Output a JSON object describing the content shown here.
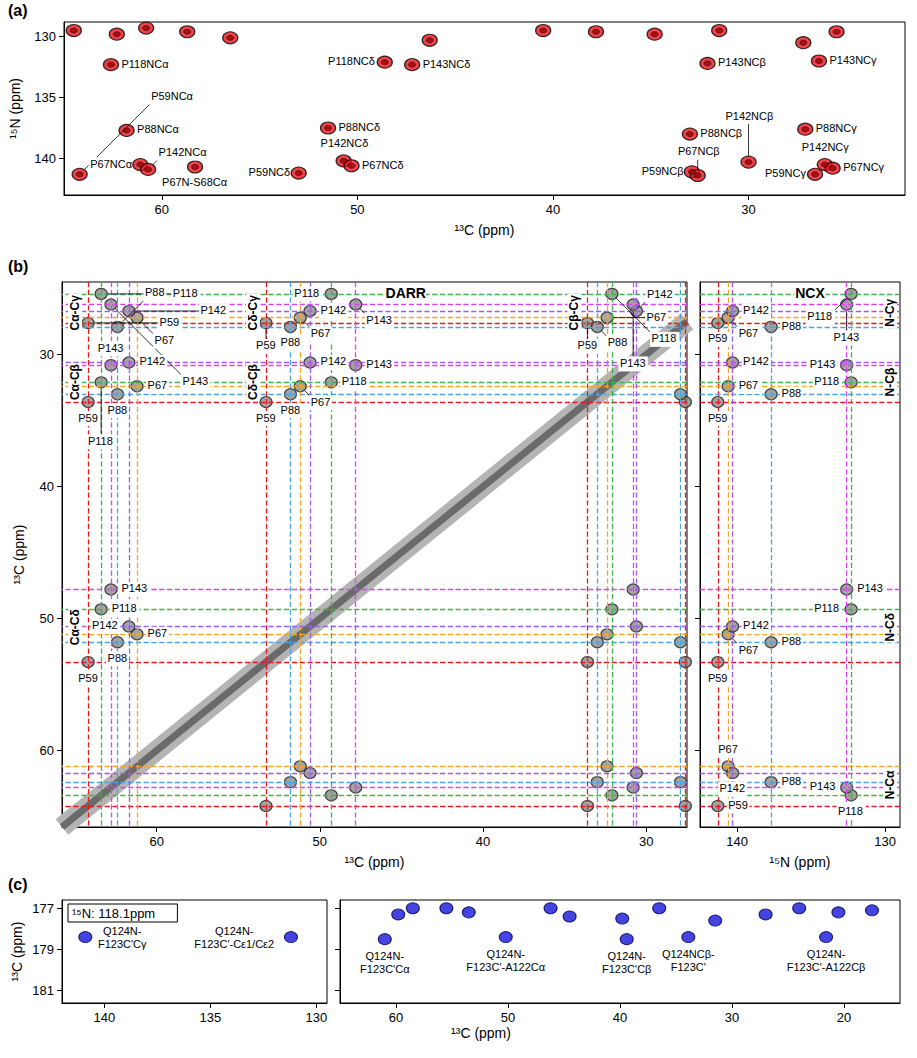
{
  "chart_data": [
    {
      "type": "scatter",
      "panel_label": "(a)",
      "x_label": "¹³C (ppm)",
      "y_label": "¹⁵N (ppm)",
      "xlim": [
        65,
        22
      ],
      "ylim": [
        143,
        128.8
      ],
      "xticks": [
        60,
        50,
        40,
        30
      ],
      "yticks": [
        130,
        135,
        140
      ],
      "color": "#e8141c",
      "peaks": [
        {
          "label": "P59NCα",
          "x": 64.2,
          "y": 141.3
        },
        {
          "label": "P118NCα",
          "x": 62.6,
          "y": 132.3
        },
        {
          "label": "P88NCα",
          "x": 61.8,
          "y": 137.7
        },
        {
          "label": "P67NCα",
          "x": 61.1,
          "y": 140.5
        },
        {
          "label": "P142NCα",
          "x": 60.7,
          "y": 140.9
        },
        {
          "label": "P67N-S68Cα",
          "x": 58.3,
          "y": 140.7
        },
        {
          "label": "P59NCδ",
          "x": 53.0,
          "y": 141.2
        },
        {
          "label": "P88NCδ",
          "x": 51.5,
          "y": 137.5
        },
        {
          "label": "P142NCδ",
          "x": 50.7,
          "y": 140.2
        },
        {
          "label": "P67NCδ",
          "x": 50.3,
          "y": 140.6
        },
        {
          "label": "P118NCδ",
          "x": 48.6,
          "y": 132.1
        },
        {
          "label": "P143NCδ",
          "x": 47.2,
          "y": 132.3
        },
        {
          "label": "P143NCβ",
          "x": 32.1,
          "y": 132.2
        },
        {
          "label": "P143NCγ",
          "x": 26.4,
          "y": 132.0
        },
        {
          "label": "P88NCβ",
          "x": 33.0,
          "y": 138.0
        },
        {
          "label": "P142NCβ",
          "x": 30.0,
          "y": 140.3
        },
        {
          "label": "P59NCβ",
          "x": 32.9,
          "y": 141.1
        },
        {
          "label": "P67NCβ",
          "x": 32.6,
          "y": 141.4
        },
        {
          "label": "P88NCγ",
          "x": 27.1,
          "y": 137.6
        },
        {
          "label": "P142NCγ",
          "x": 26.1,
          "y": 140.5
        },
        {
          "label": "P67NCγ",
          "x": 25.7,
          "y": 140.8
        },
        {
          "label": "P59NCγ",
          "x": 26.6,
          "y": 141.3
        }
      ],
      "other_peaks": [
        [
          64.5,
          129.5
        ],
        [
          62.3,
          129.8
        ],
        [
          60.8,
          129.3
        ],
        [
          58.7,
          129.6
        ],
        [
          56.5,
          130.1
        ],
        [
          46.3,
          130.3
        ],
        [
          40.5,
          129.5
        ],
        [
          37.8,
          129.6
        ],
        [
          34.8,
          129.8
        ],
        [
          31.5,
          129.5
        ],
        [
          27.2,
          130.5
        ],
        [
          25.5,
          129.6
        ]
      ]
    },
    {
      "type": "scatter",
      "panel_label": "(b)",
      "y_label": "¹³C (ppm)",
      "ylim": [
        65.8,
        24.5
      ],
      "yticks": [
        30,
        40,
        50,
        60
      ],
      "color": "#8c8c8c",
      "residues": [
        {
          "name": "P59",
          "color": "#e41a1c",
          "shifts": {
            "Cα": 64.2,
            "Cβ": 33.6,
            "Cγ": 27.6,
            "Cδ": 53.3,
            "N": 141.3
          }
        },
        {
          "name": "P88",
          "color": "#4aa3df",
          "shifts": {
            "Cα": 62.4,
            "Cβ": 33.0,
            "Cγ": 27.9,
            "Cδ": 51.8,
            "N": 137.7
          }
        },
        {
          "name": "P67",
          "color": "#f5a623",
          "shifts": {
            "Cα": 61.2,
            "Cβ": 32.4,
            "Cγ": 27.2,
            "Cδ": 51.2,
            "N": 140.6
          }
        },
        {
          "name": "P142",
          "color": "#9b5de5",
          "shifts": {
            "Cα": 61.7,
            "Cβ": 30.6,
            "Cγ": 26.7,
            "Cδ": 50.6,
            "N": 140.3
          }
        },
        {
          "name": "P118",
          "color": "#3cb44b",
          "shifts": {
            "Cα": 63.4,
            "Cβ": 32.1,
            "Cγ": 25.4,
            "Cδ": 49.3,
            "N": 132.3
          }
        },
        {
          "name": "P143",
          "color": "#e040fb",
          "shifts": {
            "Cα": 62.8,
            "Cβ": 30.8,
            "Cγ": 26.2,
            "Cδ": 47.8,
            "N": 132.6
          }
        }
      ],
      "panels": [
        {
          "title": "DARR",
          "x_label": "¹³C (ppm)",
          "xlim": [
            65.8,
            27.5
          ],
          "xticks": [
            60,
            50,
            40,
            30
          ],
          "group_labels": [
            "Cα-Cγ",
            "Cα-Cβ",
            "Cα-Cδ",
            "Cδ-Cγ",
            "Cδ-Cβ",
            "Cβ-Cγ"
          ]
        },
        {
          "title": "NCX",
          "x_label": "¹⁵N (ppm)",
          "xlim": [
            142.5,
            129
          ],
          "xticks": [
            140,
            130
          ],
          "group_labels": [
            "N-Cγ",
            "N-Cβ",
            "N-Cδ",
            "N-Cα"
          ],
          "tick_labels": "x"
        }
      ]
    },
    {
      "type": "scatter",
      "panel_label": "(c)",
      "x_label": "¹³C (ppm)",
      "y_label": "¹³C (ppm)",
      "ylim": [
        181.6,
        176.6
      ],
      "yticks": [
        177,
        179,
        181
      ],
      "color": "#1515d8",
      "inset_label": "¹⁵N: 118.1ppm",
      "panels": [
        {
          "xlim": [
            142,
            129.5
          ],
          "xticks": [
            140,
            135,
            130
          ],
          "peaks": [
            {
              "label": "Q124N-F123C'Cγ",
              "x": 140.9,
              "y": 178.4
            },
            {
              "label": "Q124N-F123C'-Cε1/Cε2",
              "x": 131.2,
              "y": 178.4
            }
          ],
          "other_peaks": []
        },
        {
          "xlim": [
            65,
            15
          ],
          "xticks": [
            60,
            50,
            40,
            30,
            20
          ],
          "tick_labels": "x",
          "peaks": [
            {
              "label": "Q124N-F123C'Cα",
              "x": 61.0,
              "y": 178.5
            },
            {
              "label": "Q124N-F123C'-A122Cα",
              "x": 50.2,
              "y": 178.4
            },
            {
              "label": "Q124N-F123C'Cβ",
              "x": 39.4,
              "y": 178.5
            },
            {
              "label": "Q124NCβ-F123C'",
              "x": 33.9,
              "y": 178.4
            },
            {
              "label": "Q124N-F123C'-A122Cβ",
              "x": 21.6,
              "y": 178.4
            }
          ],
          "other_peaks": [
            [
              59.8,
              177.3
            ],
            [
              58.5,
              177.0
            ],
            [
              55.5,
              177.0
            ],
            [
              53.5,
              177.2
            ],
            [
              46.2,
              177.0
            ],
            [
              44.5,
              177.4
            ],
            [
              39.8,
              177.5
            ],
            [
              36.5,
              177.0
            ],
            [
              31.5,
              177.6
            ],
            [
              27.0,
              177.3
            ],
            [
              24.0,
              177.0
            ],
            [
              20.5,
              177.2
            ],
            [
              17.5,
              177.1
            ]
          ]
        }
      ]
    }
  ]
}
